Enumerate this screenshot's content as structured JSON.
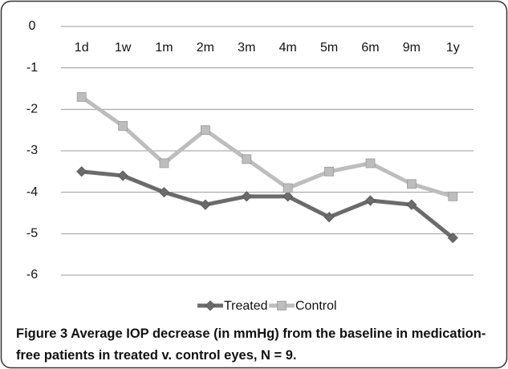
{
  "chart_data": {
    "type": "line",
    "categories": [
      "1d",
      "1w",
      "1m",
      "2m",
      "3m",
      "4m",
      "5m",
      "6m",
      "9m",
      "1y"
    ],
    "series": [
      {
        "name": "Treated",
        "color": "#6b6b6b",
        "marker": "diamond",
        "values": [
          -3.5,
          -3.6,
          -4.0,
          -4.3,
          -4.1,
          -4.1,
          -4.6,
          -4.2,
          -4.3,
          -5.1
        ]
      },
      {
        "name": "Control",
        "color": "#bdbdbd",
        "marker": "square",
        "values": [
          -1.7,
          -2.4,
          -3.3,
          -2.5,
          -3.2,
          -3.9,
          -3.5,
          -3.3,
          -3.8,
          -4.1
        ]
      }
    ],
    "ylim": [
      -6,
      0
    ],
    "yticks": [
      0,
      -1,
      -2,
      -3,
      -4,
      -5,
      -6
    ],
    "grid": true,
    "legend": "bottom"
  },
  "caption": {
    "label": "Figure 3",
    "text": "Average IOP decrease (in mmHg) from the baseline in medication-free patients in treated v. control eyes, N = 9."
  }
}
